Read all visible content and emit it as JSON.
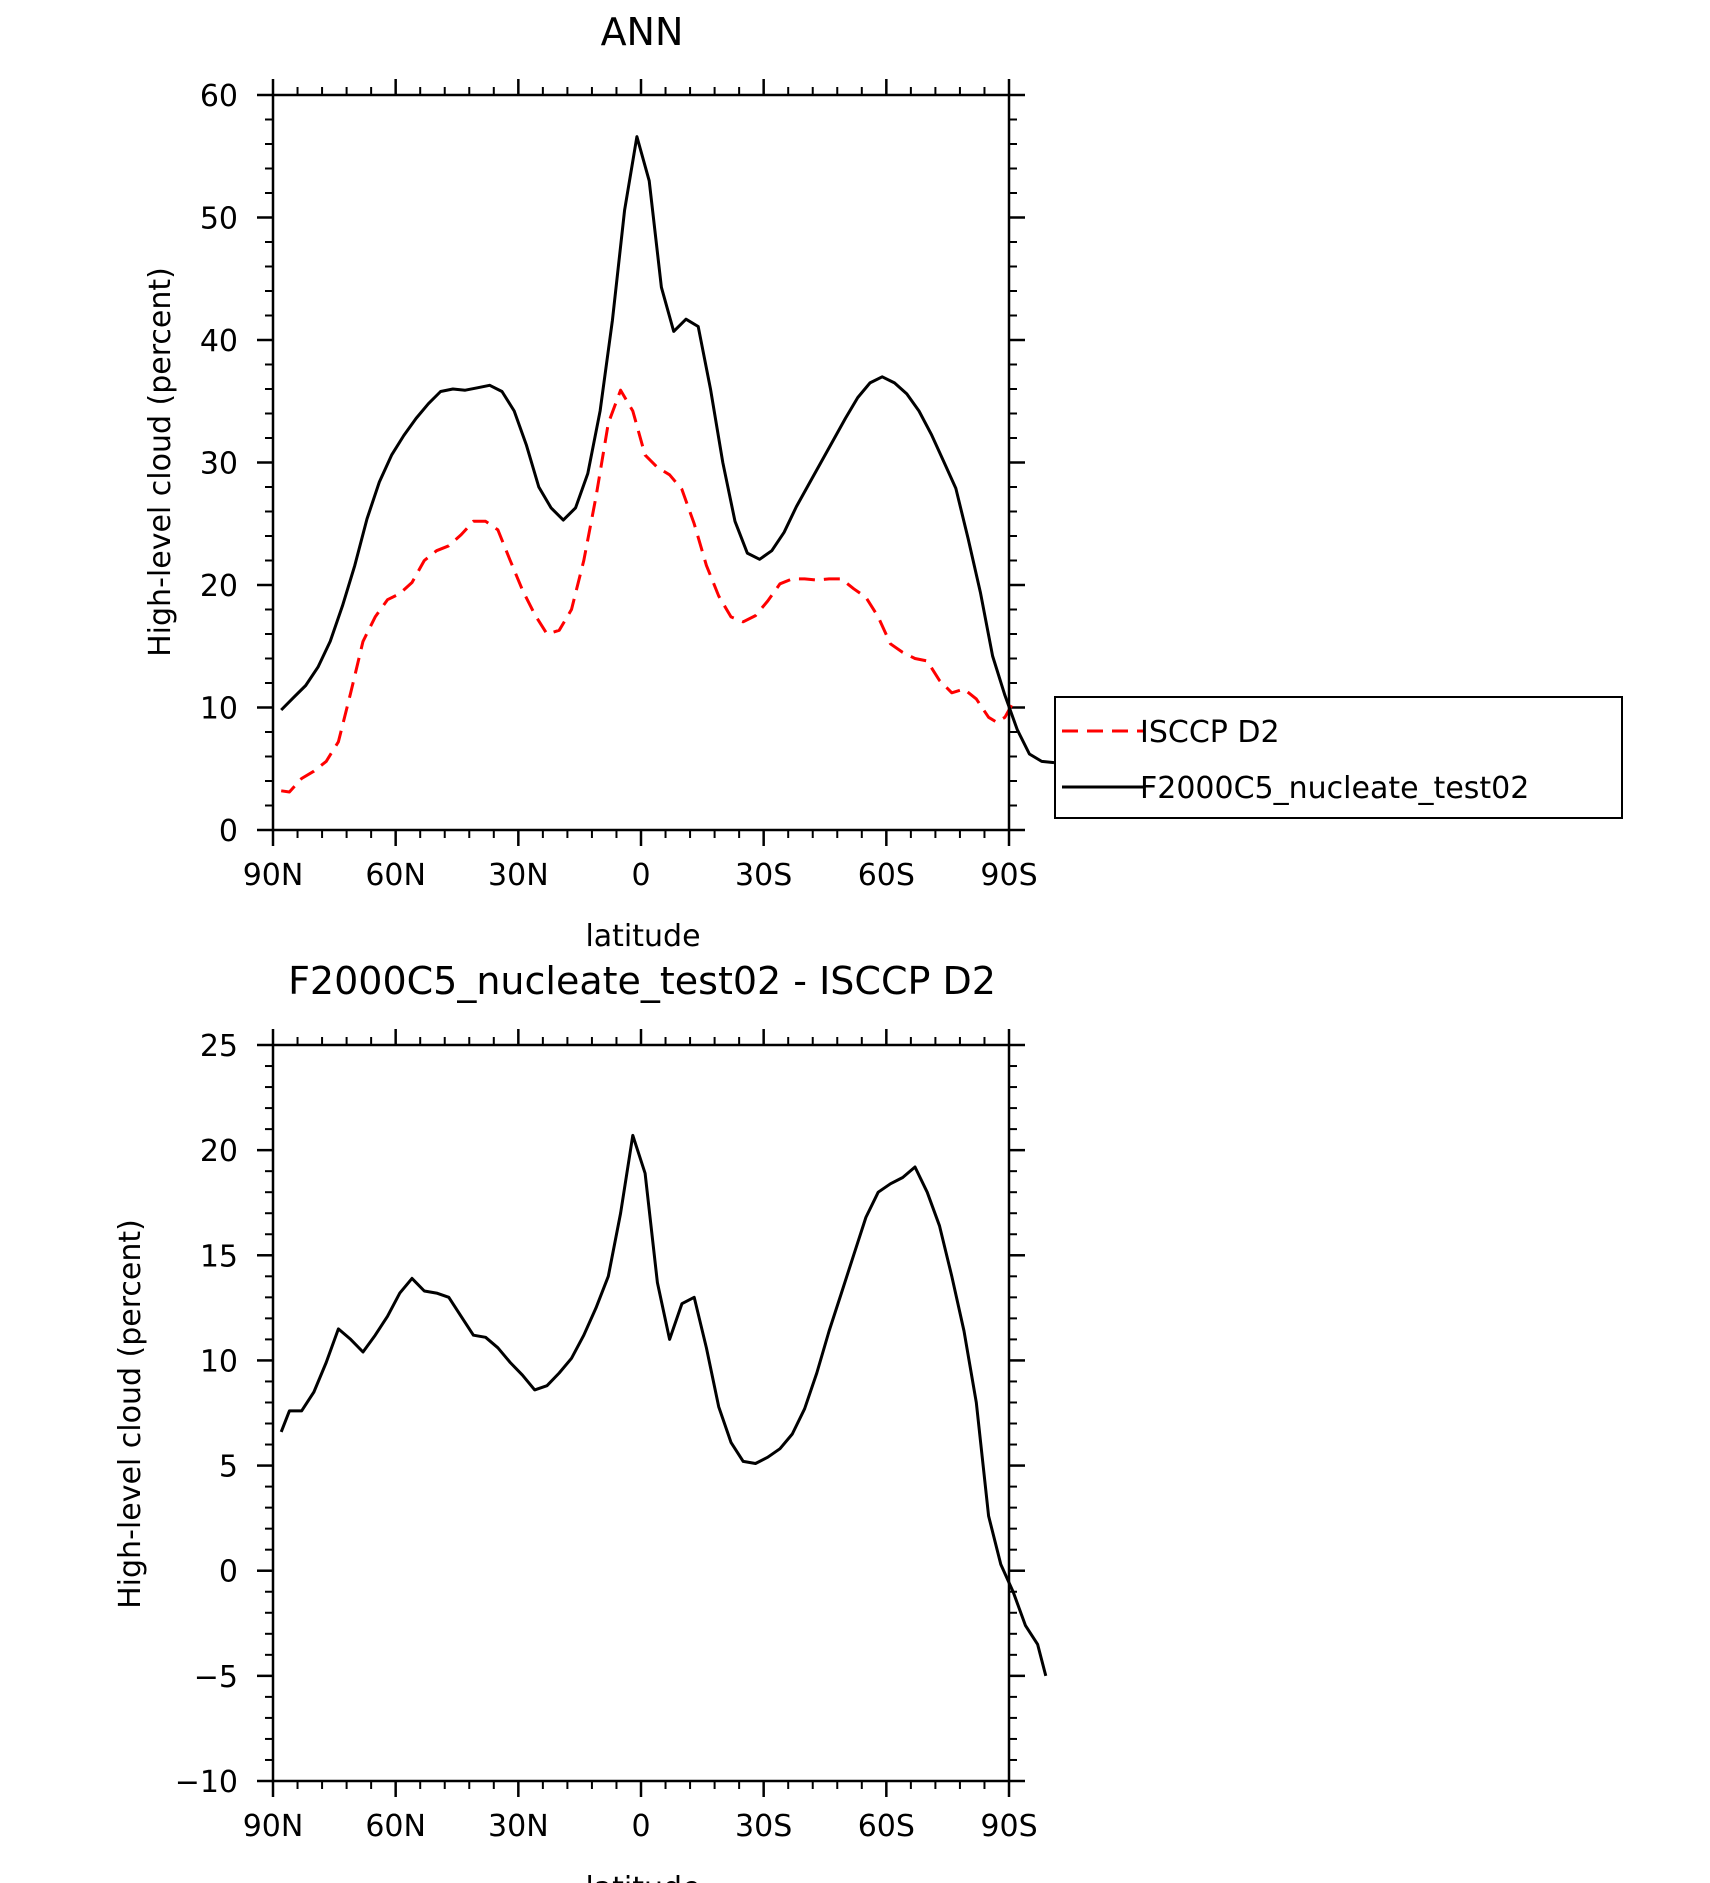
{
  "chart_data": [
    {
      "type": "line",
      "title": "ANN",
      "xlabel": "latitude",
      "ylabel": "High-level cloud (percent)",
      "xlim": [
        90,
        -90
      ],
      "ylim": [
        0,
        60
      ],
      "xticks": [
        90,
        60,
        30,
        0,
        -30,
        -60,
        -90
      ],
      "xtick_labels": [
        "90N",
        "60N",
        "30N",
        "0",
        "30S",
        "60S",
        "90S"
      ],
      "yticks": [
        0,
        10,
        20,
        30,
        40,
        50,
        60
      ],
      "ytick_labels": [
        "0",
        "10",
        "20",
        "30",
        "40",
        "50",
        "60"
      ],
      "legend": "right",
      "series": [
        {
          "name": "ISCCP D2",
          "color": "#ff0000",
          "dash": "dashed",
          "points": [
            [
              88,
              3.2
            ],
            [
              86,
              3.1
            ],
            [
              83,
              4.2
            ],
            [
              80,
              4.8
            ],
            [
              77,
              5.6
            ],
            [
              74,
              7.2
            ],
            [
              71,
              11.2
            ],
            [
              68,
              15.4
            ],
            [
              65,
              17.4
            ],
            [
              62,
              18.8
            ],
            [
              59,
              19.3
            ],
            [
              56,
              20.2
            ],
            [
              53,
              22.0
            ],
            [
              50,
              22.8
            ],
            [
              47,
              23.2
            ],
            [
              44,
              24.1
            ],
            [
              41,
              25.2
            ],
            [
              38,
              25.2
            ],
            [
              35,
              24.5
            ],
            [
              32,
              22.0
            ],
            [
              29,
              19.6
            ],
            [
              26,
              17.6
            ],
            [
              23,
              16.0
            ],
            [
              20,
              16.3
            ],
            [
              17,
              18.0
            ],
            [
              14,
              22.0
            ],
            [
              11,
              27.2
            ],
            [
              8,
              33.2
            ],
            [
              5,
              35.9
            ],
            [
              2,
              34.2
            ],
            [
              -1,
              30.6
            ],
            [
              -4,
              29.6
            ],
            [
              -7,
              29.0
            ],
            [
              -10,
              27.8
            ],
            [
              -13,
              25.0
            ],
            [
              -16,
              21.6
            ],
            [
              -19,
              19.1
            ],
            [
              -22,
              17.4
            ],
            [
              -25,
              17.0
            ],
            [
              -28,
              17.5
            ],
            [
              -31,
              18.7
            ],
            [
              -34,
              20.1
            ],
            [
              -37,
              20.5
            ],
            [
              -40,
              20.5
            ],
            [
              -43,
              20.4
            ],
            [
              -46,
              20.5
            ],
            [
              -49,
              20.5
            ],
            [
              -52,
              19.7
            ],
            [
              -55,
              19.0
            ],
            [
              -58,
              17.4
            ],
            [
              -61,
              15.2
            ],
            [
              -64,
              14.5
            ],
            [
              -67,
              14.0
            ],
            [
              -70,
              13.8
            ],
            [
              -73,
              12.2
            ],
            [
              -76,
              11.2
            ],
            [
              -79,
              11.5
            ],
            [
              -82,
              10.7
            ],
            [
              -85,
              9.2
            ],
            [
              -87,
              8.8
            ],
            [
              -89,
              9.2
            ],
            [
              -91,
              10.4
            ]
          ]
        },
        {
          "name": "F2000C5_nucleate_test02",
          "color": "#000000",
          "dash": "solid",
          "points": [
            [
              88,
              9.8
            ],
            [
              85,
              10.8
            ],
            [
              82,
              11.8
            ],
            [
              79,
              13.3
            ],
            [
              76,
              15.4
            ],
            [
              73,
              18.3
            ],
            [
              70,
              21.6
            ],
            [
              67,
              25.4
            ],
            [
              64,
              28.4
            ],
            [
              61,
              30.6
            ],
            [
              58,
              32.2
            ],
            [
              55,
              33.6
            ],
            [
              52,
              34.8
            ],
            [
              49,
              35.8
            ],
            [
              46,
              36.0
            ],
            [
              43,
              35.9
            ],
            [
              40,
              36.1
            ],
            [
              37,
              36.3
            ],
            [
              34,
              35.8
            ],
            [
              31,
              34.2
            ],
            [
              28,
              31.4
            ],
            [
              25,
              28.0
            ],
            [
              22,
              26.3
            ],
            [
              19,
              25.3
            ],
            [
              16,
              26.3
            ],
            [
              13,
              29.1
            ],
            [
              10,
              34.2
            ],
            [
              7,
              41.6
            ],
            [
              4,
              50.6
            ],
            [
              1,
              56.6
            ],
            [
              -2,
              53.0
            ],
            [
              -5,
              44.3
            ],
            [
              -8,
              40.7
            ],
            [
              -11,
              41.7
            ],
            [
              -14,
              41.1
            ],
            [
              -17,
              36.0
            ],
            [
              -20,
              30.0
            ],
            [
              -23,
              25.2
            ],
            [
              -26,
              22.6
            ],
            [
              -29,
              22.1
            ],
            [
              -32,
              22.8
            ],
            [
              -35,
              24.3
            ],
            [
              -38,
              26.4
            ],
            [
              -41,
              28.2
            ],
            [
              -44,
              30.0
            ],
            [
              -47,
              31.8
            ],
            [
              -50,
              33.6
            ],
            [
              -53,
              35.3
            ],
            [
              -56,
              36.5
            ],
            [
              -59,
              37.0
            ],
            [
              -62,
              36.5
            ],
            [
              -65,
              35.6
            ],
            [
              -68,
              34.2
            ],
            [
              -71,
              32.3
            ],
            [
              -74,
              30.1
            ],
            [
              -77,
              27.9
            ],
            [
              -80,
              23.8
            ],
            [
              -83,
              19.4
            ],
            [
              -86,
              14.2
            ],
            [
              -89,
              11.0
            ],
            [
              -92,
              8.2
            ],
            [
              -95,
              6.2
            ],
            [
              -98,
              5.6
            ],
            [
              -101,
              5.5
            ]
          ]
        }
      ]
    },
    {
      "type": "line",
      "title": "F2000C5_nucleate_test02 - ISCCP D2",
      "xlabel": "latitude",
      "ylabel": "High-level cloud (percent)",
      "xlim": [
        90,
        -90
      ],
      "ylim": [
        -10,
        25
      ],
      "xticks": [
        90,
        60,
        30,
        0,
        -30,
        -60,
        -90
      ],
      "xtick_labels": [
        "90N",
        "60N",
        "30N",
        "0",
        "30S",
        "60S",
        "90S"
      ],
      "yticks": [
        -10,
        -5,
        0,
        5,
        10,
        15,
        20,
        25
      ],
      "ytick_labels": [
        "−10",
        "−5",
        "0",
        "5",
        "10",
        "15",
        "20",
        "25"
      ],
      "series": [
        {
          "color": "#000000",
          "dash": "solid",
          "points": [
            [
              88,
              6.6
            ],
            [
              86,
              7.6
            ],
            [
              83,
              7.6
            ],
            [
              80,
              8.5
            ],
            [
              77,
              9.9
            ],
            [
              74,
              11.5
            ],
            [
              71,
              11.0
            ],
            [
              68,
              10.4
            ],
            [
              65,
              11.2
            ],
            [
              62,
              12.1
            ],
            [
              59,
              13.2
            ],
            [
              56,
              13.9
            ],
            [
              53,
              13.3
            ],
            [
              50,
              13.2
            ],
            [
              47,
              13.0
            ],
            [
              44,
              12.1
            ],
            [
              41,
              11.2
            ],
            [
              38,
              11.1
            ],
            [
              35,
              10.6
            ],
            [
              32,
              9.9
            ],
            [
              29,
              9.3
            ],
            [
              26,
              8.6
            ],
            [
              23,
              8.8
            ],
            [
              20,
              9.4
            ],
            [
              17,
              10.1
            ],
            [
              14,
              11.2
            ],
            [
              11,
              12.5
            ],
            [
              8,
              14.0
            ],
            [
              5,
              17.0
            ],
            [
              2,
              20.7
            ],
            [
              -1,
              18.9
            ],
            [
              -4,
              13.7
            ],
            [
              -7,
              11.0
            ],
            [
              -10,
              12.7
            ],
            [
              -13,
              13.0
            ],
            [
              -16,
              10.6
            ],
            [
              -19,
              7.8
            ],
            [
              -22,
              6.1
            ],
            [
              -25,
              5.2
            ],
            [
              -28,
              5.1
            ],
            [
              -31,
              5.4
            ],
            [
              -34,
              5.8
            ],
            [
              -37,
              6.5
            ],
            [
              -40,
              7.7
            ],
            [
              -43,
              9.4
            ],
            [
              -46,
              11.4
            ],
            [
              -49,
              13.2
            ],
            [
              -52,
              15.0
            ],
            [
              -55,
              16.8
            ],
            [
              -58,
              18.0
            ],
            [
              -61,
              18.4
            ],
            [
              -64,
              18.7
            ],
            [
              -67,
              19.2
            ],
            [
              -70,
              18.0
            ],
            [
              -73,
              16.4
            ],
            [
              -76,
              14.0
            ],
            [
              -79,
              11.4
            ],
            [
              -82,
              8.0
            ],
            [
              -85,
              2.6
            ],
            [
              -88,
              0.3
            ],
            [
              -91,
              -1.0
            ],
            [
              -94,
              -2.6
            ],
            [
              -97,
              -3.5
            ],
            [
              -99,
              -5.0
            ]
          ]
        }
      ]
    }
  ]
}
